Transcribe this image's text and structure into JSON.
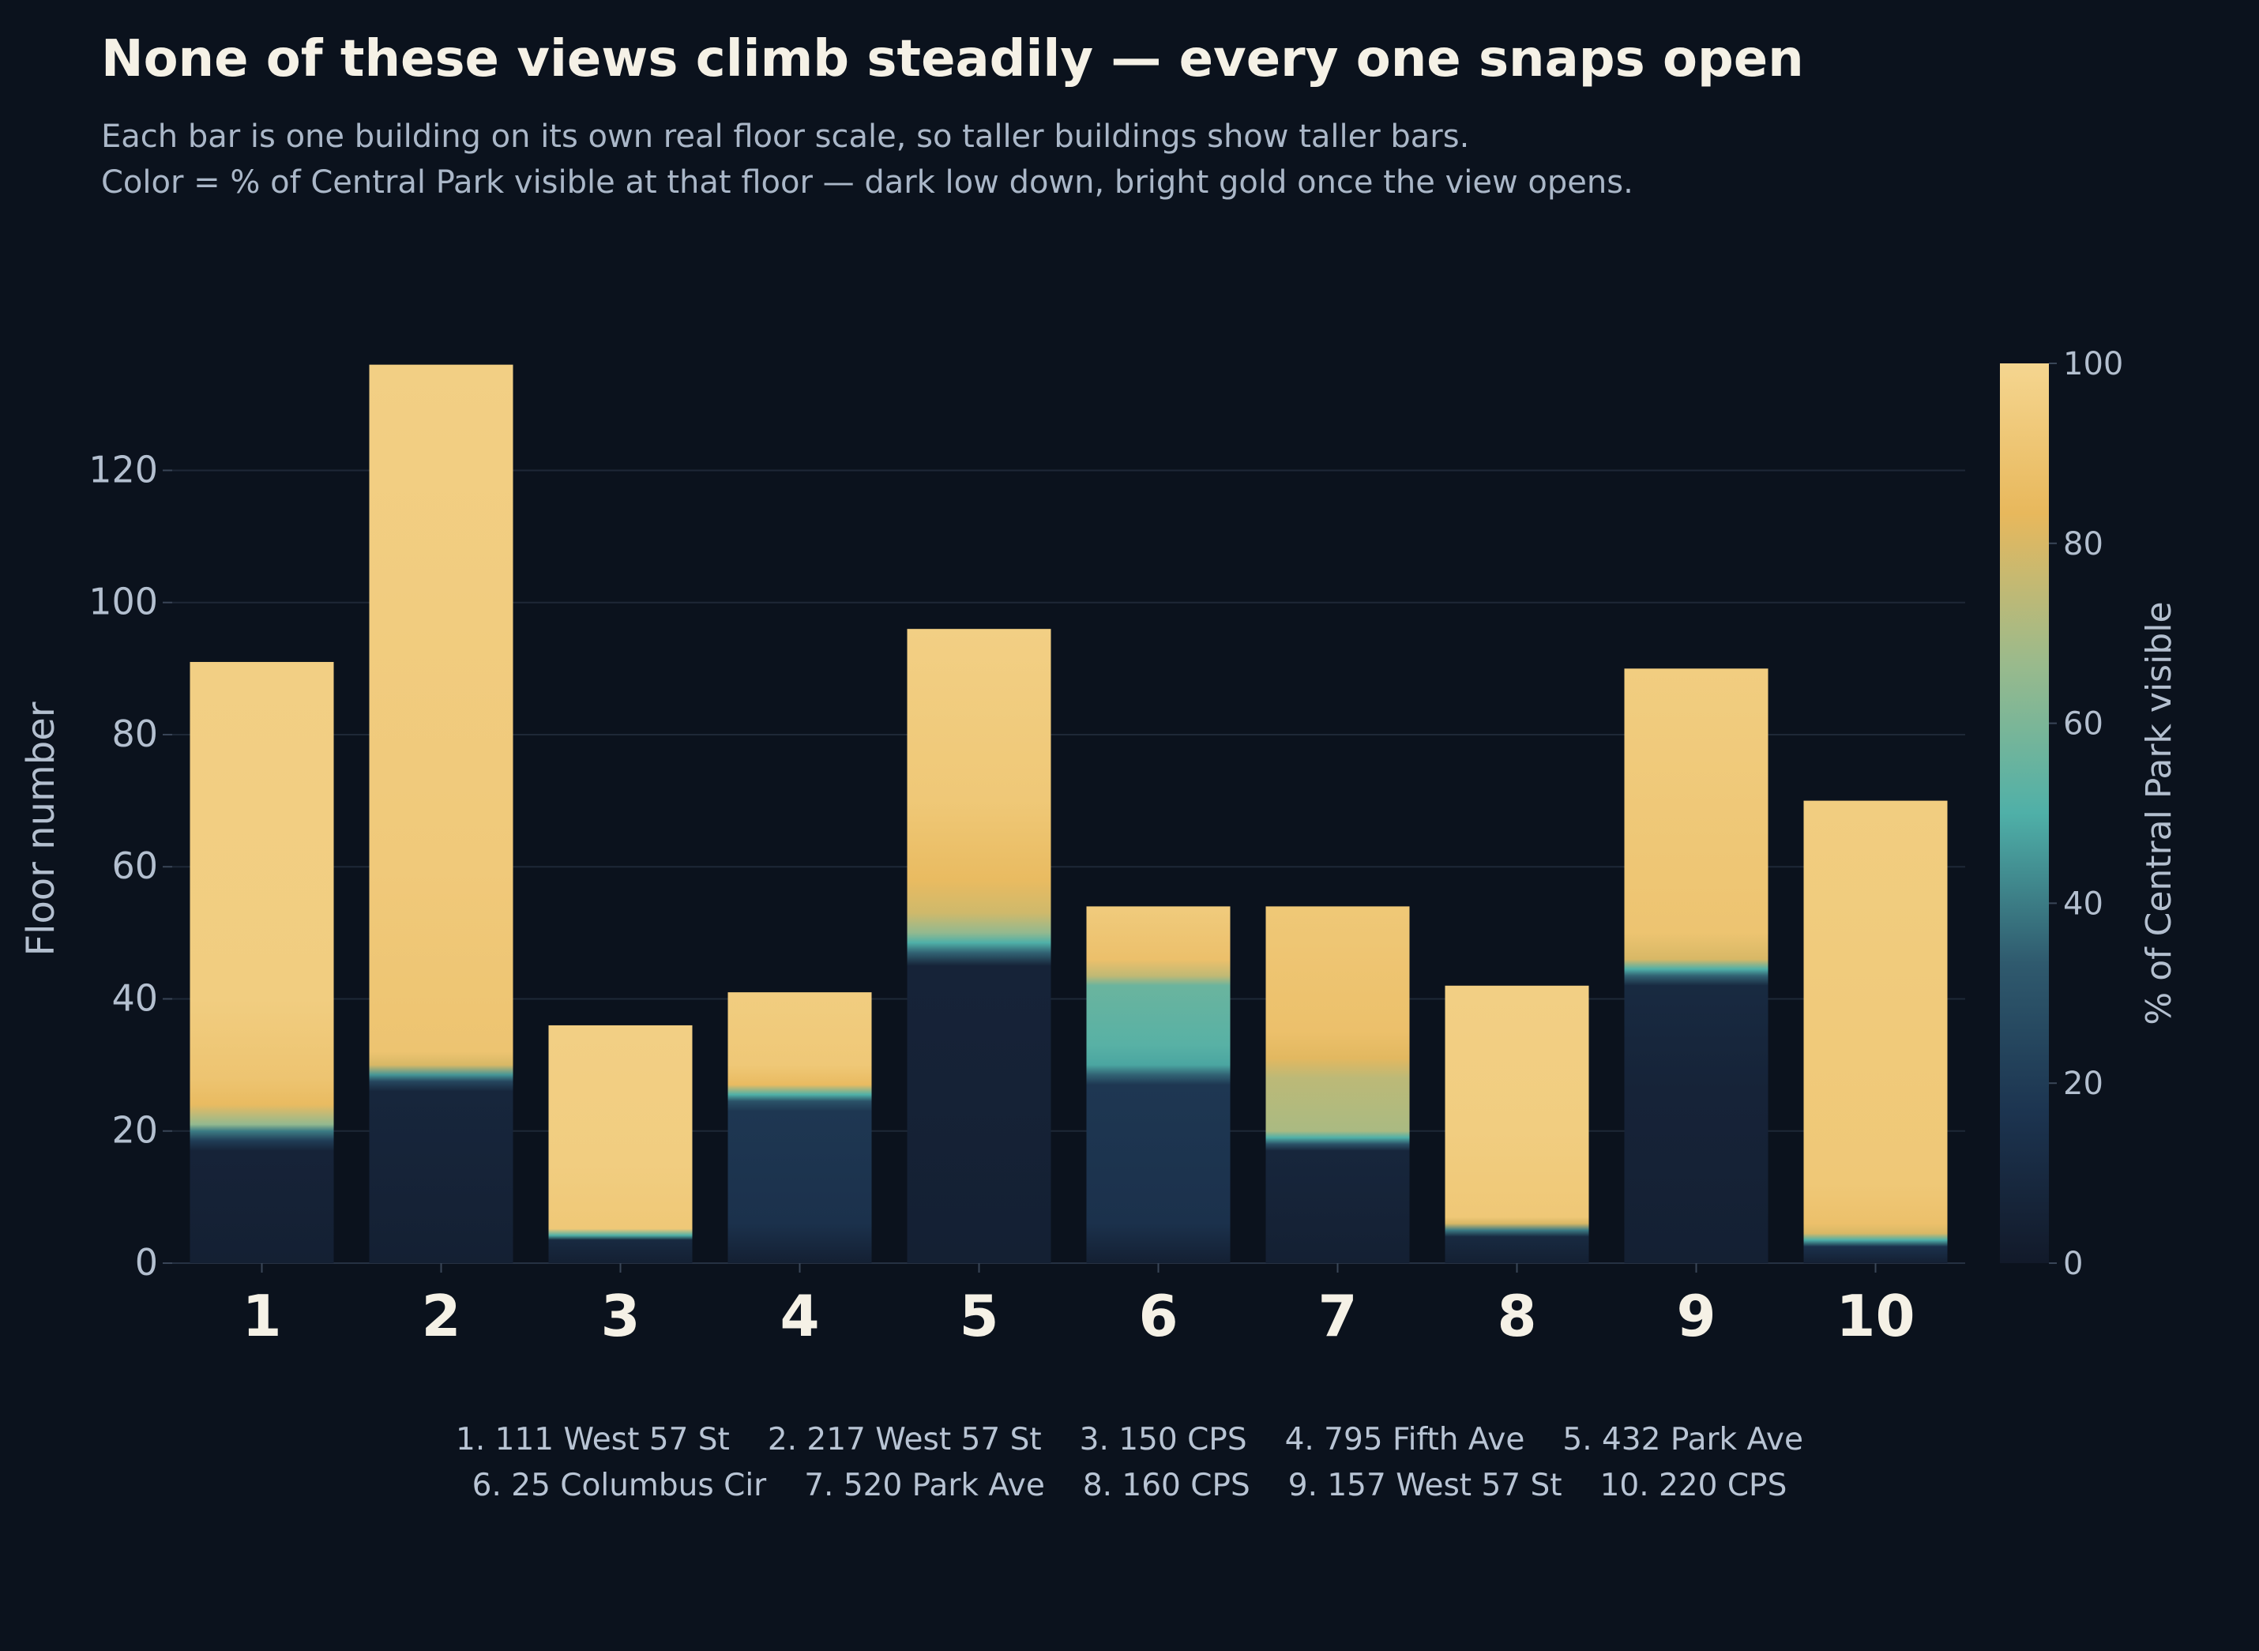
{
  "title": "None of these views climb steadily — every one snaps open",
  "subtitle_lines": [
    "Each bar is one building on its own real floor scale, so taller buildings show taller bars.",
    "Color = % of Central Park visible at that floor — dark low down, bright gold once the view opens."
  ],
  "chart_data": {
    "type": "bar",
    "ylabel": "Floor number",
    "ylim": [
      0,
      135
    ],
    "yticks": [
      0,
      20,
      40,
      60,
      80,
      100,
      120
    ],
    "grid": true,
    "colorbar": {
      "label": "% of Central Park visible",
      "range": [
        0,
        100
      ],
      "ticks": [
        0,
        20,
        40,
        60,
        80,
        100
      ],
      "colors": [
        "#121a2a",
        "#1c3450",
        "#2f5a6e",
        "#4fb0a8",
        "#9aba8c",
        "#e8b85c",
        "#f5d690"
      ]
    },
    "categories": [
      "1",
      "2",
      "3",
      "4",
      "5",
      "6",
      "7",
      "8",
      "9",
      "10"
    ],
    "buildings": [
      {
        "label": "1",
        "name": "111 West 57 St",
        "floors": 91,
        "visibility": [
          [
            0,
            4
          ],
          [
            17,
            6
          ],
          [
            18.5,
            20
          ],
          [
            20,
            40
          ],
          [
            21,
            65
          ],
          [
            24,
            85
          ],
          [
            28,
            90
          ],
          [
            40,
            95
          ],
          [
            91,
            96
          ]
        ]
      },
      {
        "label": "2",
        "name": "217 West 57 St",
        "floors": 136,
        "visibility": [
          [
            0,
            4
          ],
          [
            26,
            8
          ],
          [
            27.5,
            25
          ],
          [
            28.5,
            45
          ],
          [
            30,
            80
          ],
          [
            32,
            90
          ],
          [
            60,
            93
          ],
          [
            136,
            96
          ]
        ]
      },
      {
        "label": "3",
        "name": "150 CPS",
        "floors": 36,
        "visibility": [
          [
            0,
            4
          ],
          [
            3.5,
            10
          ],
          [
            4.2,
            50
          ],
          [
            5.2,
            92
          ],
          [
            15,
            95
          ],
          [
            36,
            96
          ]
        ]
      },
      {
        "label": "4",
        "name": "795 Fifth Ave",
        "floors": 41,
        "visibility": [
          [
            0,
            4
          ],
          [
            6,
            15
          ],
          [
            23,
            18
          ],
          [
            24.5,
            30
          ],
          [
            25.5,
            50
          ],
          [
            27,
            85
          ],
          [
            30,
            92
          ],
          [
            41,
            95
          ]
        ]
      },
      {
        "label": "5",
        "name": "432 Park Ave",
        "floors": 96,
        "visibility": [
          [
            0,
            4
          ],
          [
            45,
            6
          ],
          [
            47,
            35
          ],
          [
            48.5,
            50
          ],
          [
            50,
            65
          ],
          [
            53,
            78
          ],
          [
            58,
            85
          ],
          [
            70,
            92
          ],
          [
            96,
            96
          ]
        ]
      },
      {
        "label": "6",
        "name": "25 Columbus Cir",
        "floors": 54,
        "visibility": [
          [
            0,
            4
          ],
          [
            6,
            15
          ],
          [
            27,
            18
          ],
          [
            28.5,
            35
          ],
          [
            30,
            48
          ],
          [
            33,
            52
          ],
          [
            42,
            56
          ],
          [
            43.5,
            75
          ],
          [
            46,
            88
          ],
          [
            54,
            94
          ]
        ]
      },
      {
        "label": "7",
        "name": "520 Park Ave",
        "floors": 54,
        "visibility": [
          [
            0,
            4
          ],
          [
            17,
            8
          ],
          [
            18,
            30
          ],
          [
            19,
            50
          ],
          [
            20,
            70
          ],
          [
            28,
            74
          ],
          [
            31,
            82
          ],
          [
            35,
            88
          ],
          [
            54,
            92
          ]
        ]
      },
      {
        "label": "8",
        "name": "160 CPS",
        "floors": 42,
        "visibility": [
          [
            0,
            4
          ],
          [
            4,
            10
          ],
          [
            5,
            40
          ],
          [
            6,
            80
          ],
          [
            7,
            92
          ],
          [
            20,
            95
          ],
          [
            42,
            96
          ]
        ]
      },
      {
        "label": "9",
        "name": "157 West 57 St",
        "floors": 90,
        "visibility": [
          [
            0,
            4
          ],
          [
            26,
            6
          ],
          [
            42,
            10
          ],
          [
            43.5,
            35
          ],
          [
            44.5,
            50
          ],
          [
            46,
            80
          ],
          [
            50,
            90
          ],
          [
            90,
            95
          ]
        ]
      },
      {
        "label": "10",
        "name": "220 CPS",
        "floors": 70,
        "visibility": [
          [
            0,
            4
          ],
          [
            2.5,
            15
          ],
          [
            3.5,
            50
          ],
          [
            4.5,
            80
          ],
          [
            6,
            88
          ],
          [
            12,
            92
          ],
          [
            70,
            95
          ]
        ]
      }
    ]
  }
}
